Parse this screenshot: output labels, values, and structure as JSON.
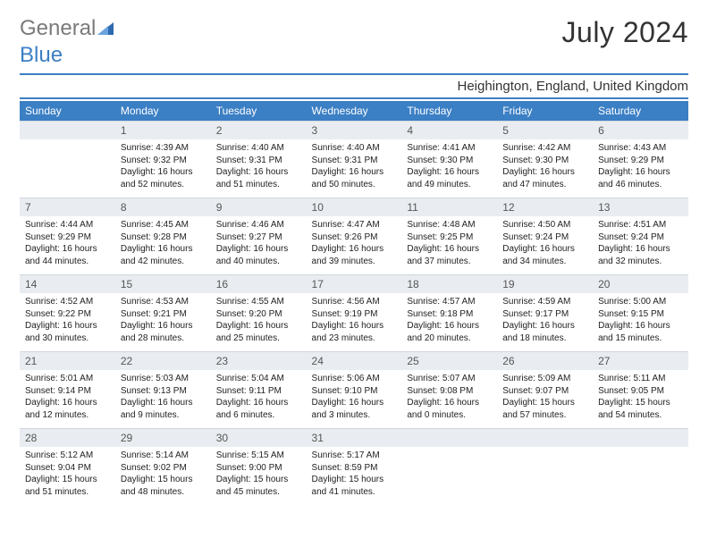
{
  "brand": {
    "part1": "General",
    "part2": "Blue"
  },
  "title": "July 2024",
  "location": "Heighington, England, United Kingdom",
  "colors": {
    "accent": "#3b7fc4",
    "header_bg": "#3b7fc4",
    "daynum_bg": "#e9edf1"
  },
  "weekdays": [
    "Sunday",
    "Monday",
    "Tuesday",
    "Wednesday",
    "Thursday",
    "Friday",
    "Saturday"
  ],
  "weeks": [
    [
      null,
      {
        "n": "1",
        "sr": "4:39 AM",
        "ss": "9:32 PM",
        "dl": "16 hours and 52 minutes."
      },
      {
        "n": "2",
        "sr": "4:40 AM",
        "ss": "9:31 PM",
        "dl": "16 hours and 51 minutes."
      },
      {
        "n": "3",
        "sr": "4:40 AM",
        "ss": "9:31 PM",
        "dl": "16 hours and 50 minutes."
      },
      {
        "n": "4",
        "sr": "4:41 AM",
        "ss": "9:30 PM",
        "dl": "16 hours and 49 minutes."
      },
      {
        "n": "5",
        "sr": "4:42 AM",
        "ss": "9:30 PM",
        "dl": "16 hours and 47 minutes."
      },
      {
        "n": "6",
        "sr": "4:43 AM",
        "ss": "9:29 PM",
        "dl": "16 hours and 46 minutes."
      }
    ],
    [
      {
        "n": "7",
        "sr": "4:44 AM",
        "ss": "9:29 PM",
        "dl": "16 hours and 44 minutes."
      },
      {
        "n": "8",
        "sr": "4:45 AM",
        "ss": "9:28 PM",
        "dl": "16 hours and 42 minutes."
      },
      {
        "n": "9",
        "sr": "4:46 AM",
        "ss": "9:27 PM",
        "dl": "16 hours and 40 minutes."
      },
      {
        "n": "10",
        "sr": "4:47 AM",
        "ss": "9:26 PM",
        "dl": "16 hours and 39 minutes."
      },
      {
        "n": "11",
        "sr": "4:48 AM",
        "ss": "9:25 PM",
        "dl": "16 hours and 37 minutes."
      },
      {
        "n": "12",
        "sr": "4:50 AM",
        "ss": "9:24 PM",
        "dl": "16 hours and 34 minutes."
      },
      {
        "n": "13",
        "sr": "4:51 AM",
        "ss": "9:24 PM",
        "dl": "16 hours and 32 minutes."
      }
    ],
    [
      {
        "n": "14",
        "sr": "4:52 AM",
        "ss": "9:22 PM",
        "dl": "16 hours and 30 minutes."
      },
      {
        "n": "15",
        "sr": "4:53 AM",
        "ss": "9:21 PM",
        "dl": "16 hours and 28 minutes."
      },
      {
        "n": "16",
        "sr": "4:55 AM",
        "ss": "9:20 PM",
        "dl": "16 hours and 25 minutes."
      },
      {
        "n": "17",
        "sr": "4:56 AM",
        "ss": "9:19 PM",
        "dl": "16 hours and 23 minutes."
      },
      {
        "n": "18",
        "sr": "4:57 AM",
        "ss": "9:18 PM",
        "dl": "16 hours and 20 minutes."
      },
      {
        "n": "19",
        "sr": "4:59 AM",
        "ss": "9:17 PM",
        "dl": "16 hours and 18 minutes."
      },
      {
        "n": "20",
        "sr": "5:00 AM",
        "ss": "9:15 PM",
        "dl": "16 hours and 15 minutes."
      }
    ],
    [
      {
        "n": "21",
        "sr": "5:01 AM",
        "ss": "9:14 PM",
        "dl": "16 hours and 12 minutes."
      },
      {
        "n": "22",
        "sr": "5:03 AM",
        "ss": "9:13 PM",
        "dl": "16 hours and 9 minutes."
      },
      {
        "n": "23",
        "sr": "5:04 AM",
        "ss": "9:11 PM",
        "dl": "16 hours and 6 minutes."
      },
      {
        "n": "24",
        "sr": "5:06 AM",
        "ss": "9:10 PM",
        "dl": "16 hours and 3 minutes."
      },
      {
        "n": "25",
        "sr": "5:07 AM",
        "ss": "9:08 PM",
        "dl": "16 hours and 0 minutes."
      },
      {
        "n": "26",
        "sr": "5:09 AM",
        "ss": "9:07 PM",
        "dl": "15 hours and 57 minutes."
      },
      {
        "n": "27",
        "sr": "5:11 AM",
        "ss": "9:05 PM",
        "dl": "15 hours and 54 minutes."
      }
    ],
    [
      {
        "n": "28",
        "sr": "5:12 AM",
        "ss": "9:04 PM",
        "dl": "15 hours and 51 minutes."
      },
      {
        "n": "29",
        "sr": "5:14 AM",
        "ss": "9:02 PM",
        "dl": "15 hours and 48 minutes."
      },
      {
        "n": "30",
        "sr": "5:15 AM",
        "ss": "9:00 PM",
        "dl": "15 hours and 45 minutes."
      },
      {
        "n": "31",
        "sr": "5:17 AM",
        "ss": "8:59 PM",
        "dl": "15 hours and 41 minutes."
      },
      null,
      null,
      null
    ]
  ],
  "labels": {
    "sunrise": "Sunrise:",
    "sunset": "Sunset:",
    "daylight": "Daylight:"
  }
}
